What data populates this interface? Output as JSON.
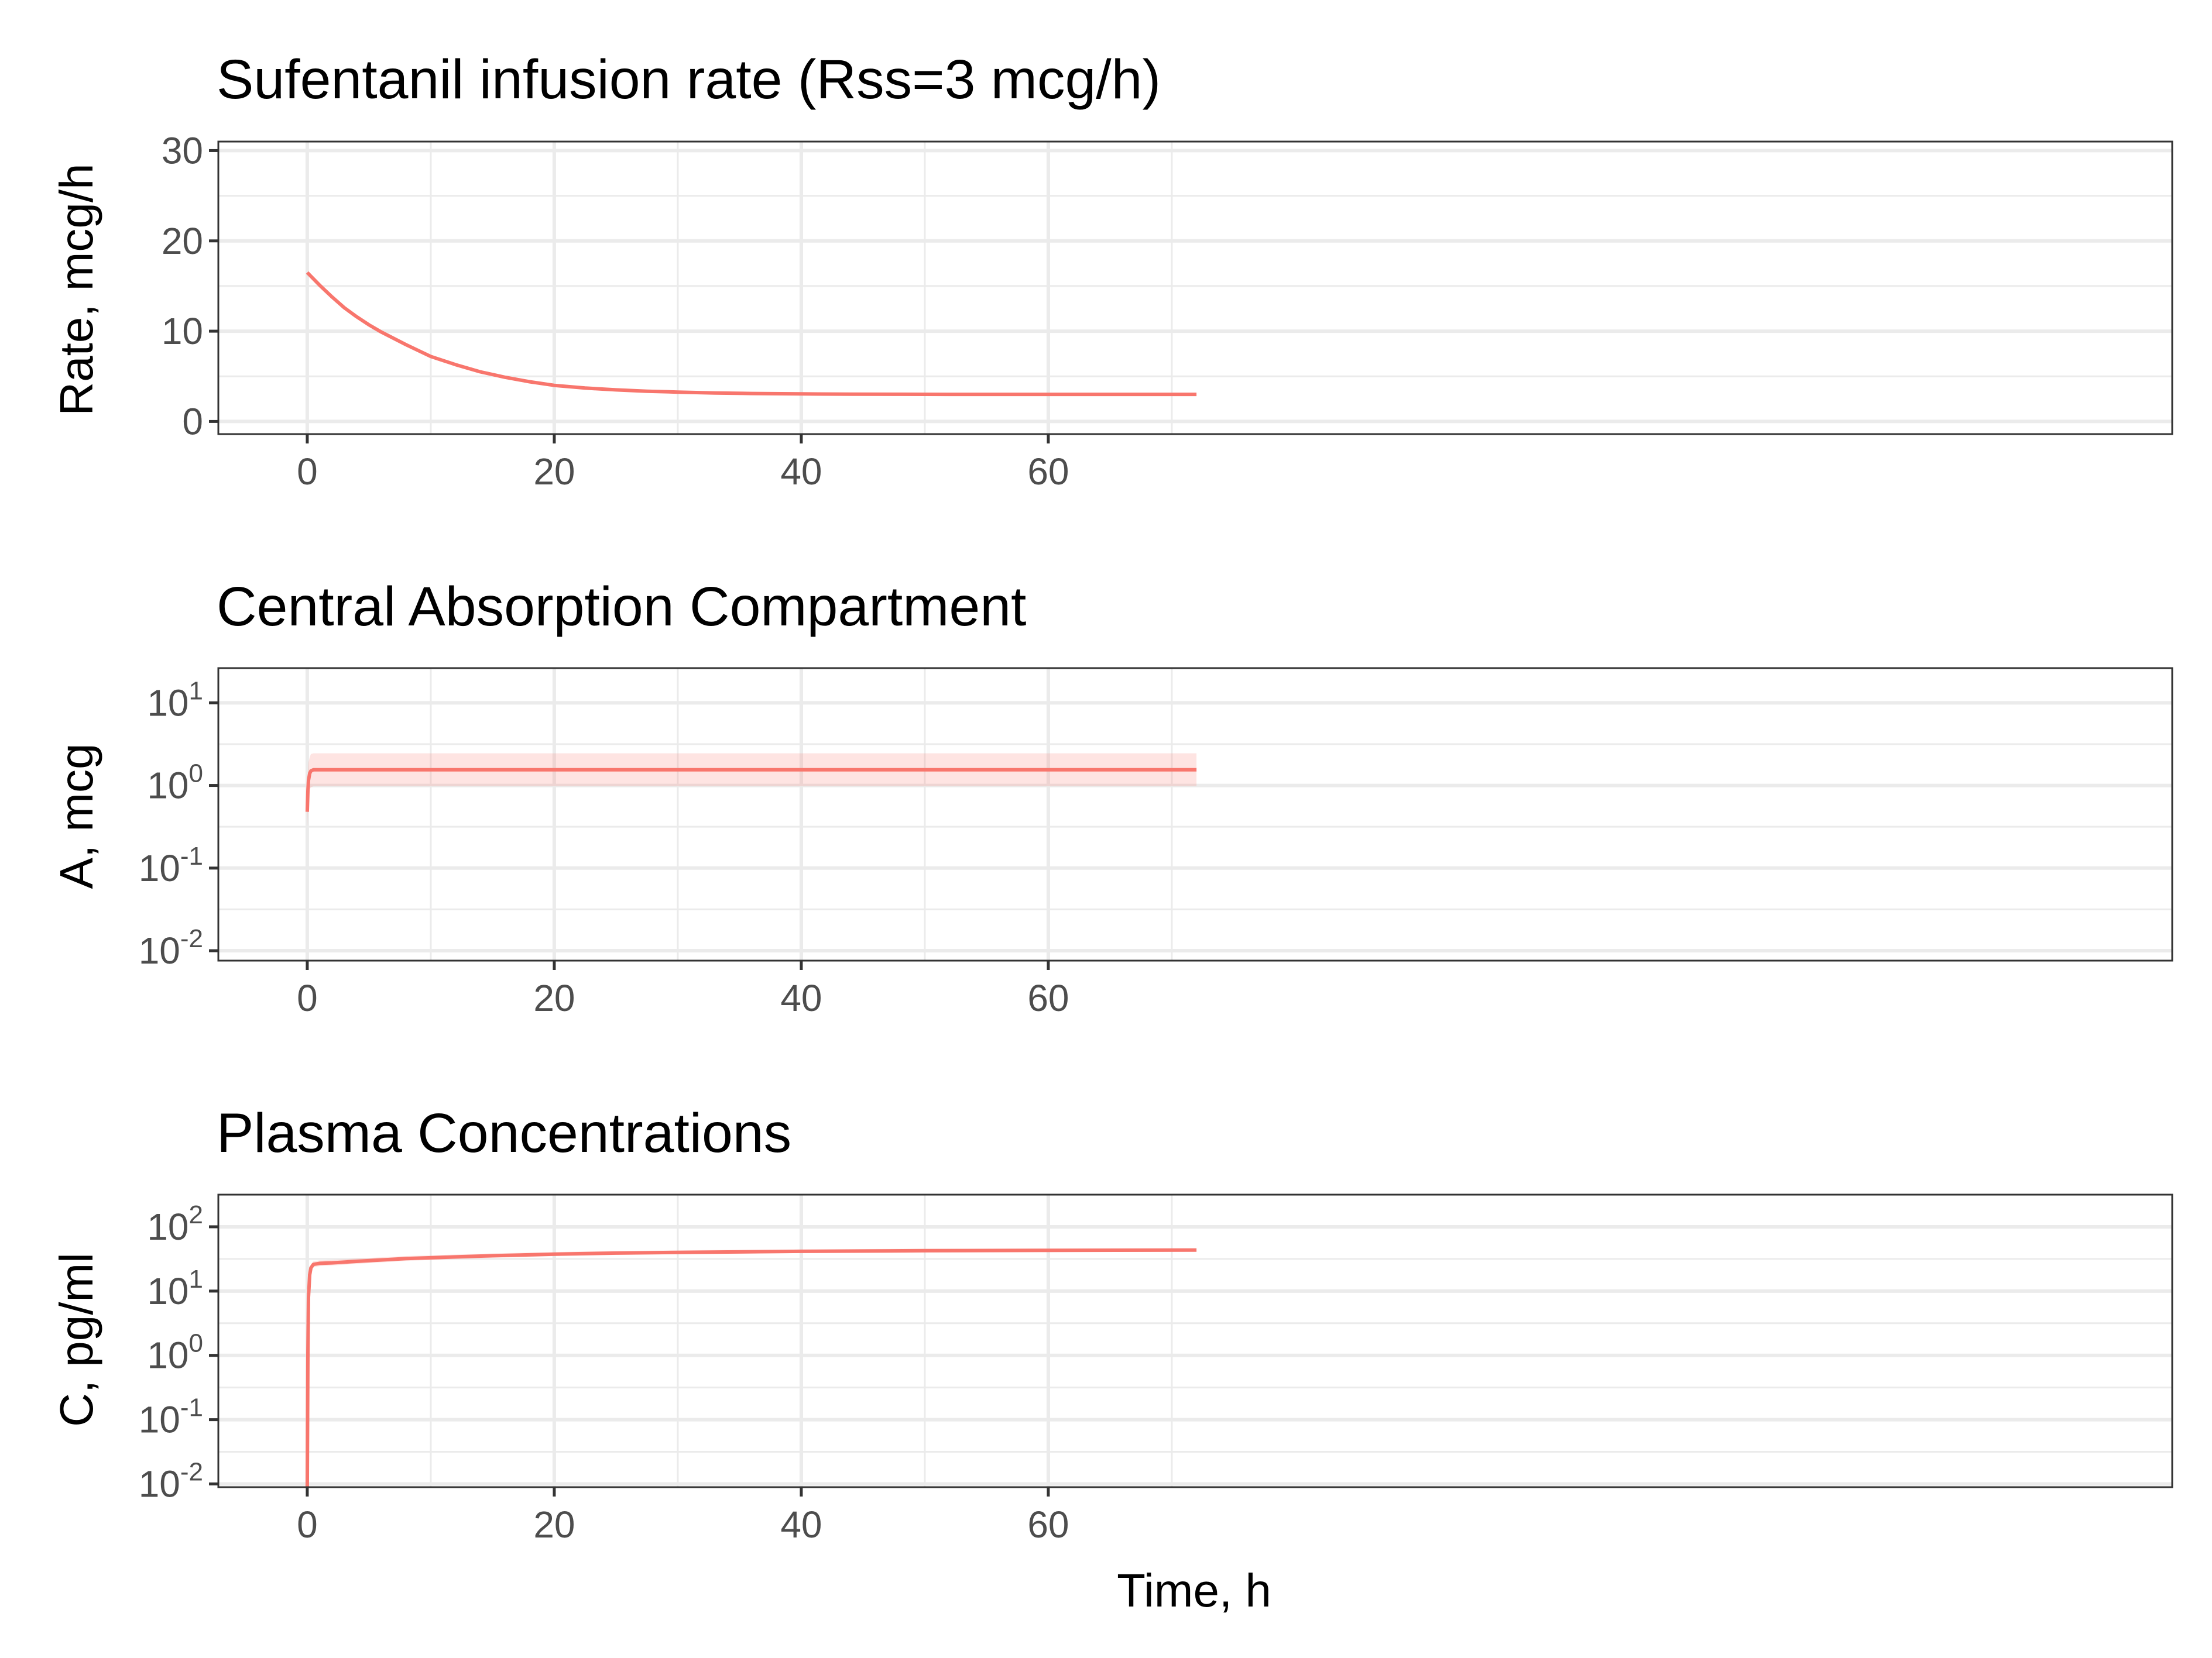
{
  "chart_data": [
    {
      "type": "line",
      "title": "Sufentanil infusion rate (Rss=3 mcg/h)",
      "xlabel": "",
      "ylabel": "Rate, mcg/h",
      "xlim": [
        -7.2,
        151
      ],
      "ylim": [
        -1.4,
        31
      ],
      "y_scale": "linear",
      "x_ticks": [
        0,
        20,
        40,
        60
      ],
      "x_minor_ticks": [
        10,
        30,
        50,
        70
      ],
      "y_ticks": [
        0,
        10,
        20,
        30
      ],
      "y_minor_ticks": [
        5,
        15,
        25
      ],
      "y_tick_labels": [
        {
          "base": "0",
          "exp": ""
        },
        {
          "base": "10",
          "exp": ""
        },
        {
          "base": "20",
          "exp": ""
        },
        {
          "base": "30",
          "exp": ""
        }
      ],
      "grid": true,
      "color": "#f8766d",
      "ribbon_color": "#f8766d",
      "series": [
        {
          "x": [
            0,
            1,
            2,
            3,
            4,
            5,
            6,
            8,
            10,
            12,
            14,
            16,
            18,
            20,
            22.5,
            25,
            27.5,
            30,
            33,
            36,
            40,
            44,
            48,
            52,
            56,
            60,
            64,
            68,
            72
          ],
          "y": [
            16.5,
            15.1,
            13.8,
            12.6,
            11.6,
            10.7,
            9.9,
            8.5,
            7.2,
            6.3,
            5.5,
            4.9,
            4.4,
            4.0,
            3.7,
            3.5,
            3.35,
            3.25,
            3.15,
            3.1,
            3.05,
            3.02,
            3.01,
            3.0,
            3.0,
            3.0,
            3.0,
            3.0,
            3.0
          ]
        }
      ]
    },
    {
      "type": "line",
      "title": "Central Absorption Compartment",
      "xlabel": "",
      "ylabel": "A, mcg",
      "xlim": [
        -7.2,
        151
      ],
      "ylim": [
        -2.12,
        1.42
      ],
      "y_scale": "log10",
      "x_ticks": [
        0,
        20,
        40,
        60
      ],
      "x_minor_ticks": [
        10,
        30,
        50,
        70
      ],
      "y_ticks": [
        -2,
        -1,
        0,
        1
      ],
      "y_minor_ticks": [
        -1.5,
        -0.5,
        0.5
      ],
      "y_tick_labels": [
        {
          "base": "10",
          "exp": "-2"
        },
        {
          "base": "10",
          "exp": "-1"
        },
        {
          "base": "10",
          "exp": "0"
        },
        {
          "base": "10",
          "exp": "1"
        }
      ],
      "grid": true,
      "color": "#f8766d",
      "ribbon_color": "#f8766d",
      "series": [
        {
          "x": [
            0,
            0.05,
            0.1,
            0.2,
            0.3,
            0.5,
            1,
            72
          ],
          "y": [
            0.48,
            0.85,
            1.15,
            1.4,
            1.5,
            1.55,
            1.55,
            1.55
          ],
          "ribbon_lower": [
            0.3,
            0.55,
            0.75,
            0.9,
            0.95,
            0.98,
            0.98,
            0.98
          ],
          "ribbon_upper": [
            0.8,
            1.4,
            1.9,
            2.2,
            2.4,
            2.45,
            2.45,
            2.45
          ]
        }
      ]
    },
    {
      "type": "line",
      "title": "Plasma Concentrations",
      "xlabel": "Time, h",
      "ylabel": "C, pg/ml",
      "xlim": [
        -7.2,
        151
      ],
      "ylim": [
        -2.05,
        2.5
      ],
      "y_scale": "log10",
      "x_ticks": [
        0,
        20,
        40,
        60
      ],
      "x_minor_ticks": [
        10,
        30,
        50,
        70
      ],
      "y_ticks": [
        -2,
        -1,
        0,
        1,
        2
      ],
      "y_minor_ticks": [
        -1.5,
        -0.5,
        0.5,
        1.5
      ],
      "y_tick_labels": [
        {
          "base": "10",
          "exp": "-2"
        },
        {
          "base": "10",
          "exp": "-1"
        },
        {
          "base": "10",
          "exp": "0"
        },
        {
          "base": "10",
          "exp": "1"
        },
        {
          "base": "10",
          "exp": "2"
        }
      ],
      "grid": true,
      "color": "#f8766d",
      "ribbon_color": "#f8766d",
      "series": [
        {
          "x": [
            0,
            0.05,
            0.1,
            0.2,
            0.3,
            0.5,
            1,
            2,
            4,
            6,
            8,
            10,
            12,
            15,
            20,
            25,
            30,
            40,
            50,
            60,
            72
          ],
          "y": [
            0.008,
            1.0,
            8.0,
            18.0,
            23.0,
            26.0,
            27.0,
            27.5,
            29.0,
            30.5,
            32.0,
            33.0,
            34.0,
            35.5,
            37.5,
            39.0,
            40.0,
            41.5,
            42.5,
            43.0,
            43.5
          ],
          "ribbon_lower": [
            0.006,
            0.8,
            6.5,
            15.5,
            20.5,
            23.5,
            24.5,
            25.0,
            26.5,
            28.0,
            29.5,
            30.5,
            31.5,
            33.0,
            35.0,
            36.5,
            37.5,
            39.0,
            40.0,
            40.5,
            41.0
          ],
          "ribbon_upper": [
            0.01,
            1.2,
            9.5,
            21.0,
            26.0,
            29.0,
            30.0,
            30.5,
            32.0,
            33.5,
            35.0,
            36.0,
            37.0,
            38.5,
            40.5,
            42.0,
            43.0,
            44.5,
            45.5,
            46.0,
            46.5
          ]
        }
      ]
    }
  ]
}
